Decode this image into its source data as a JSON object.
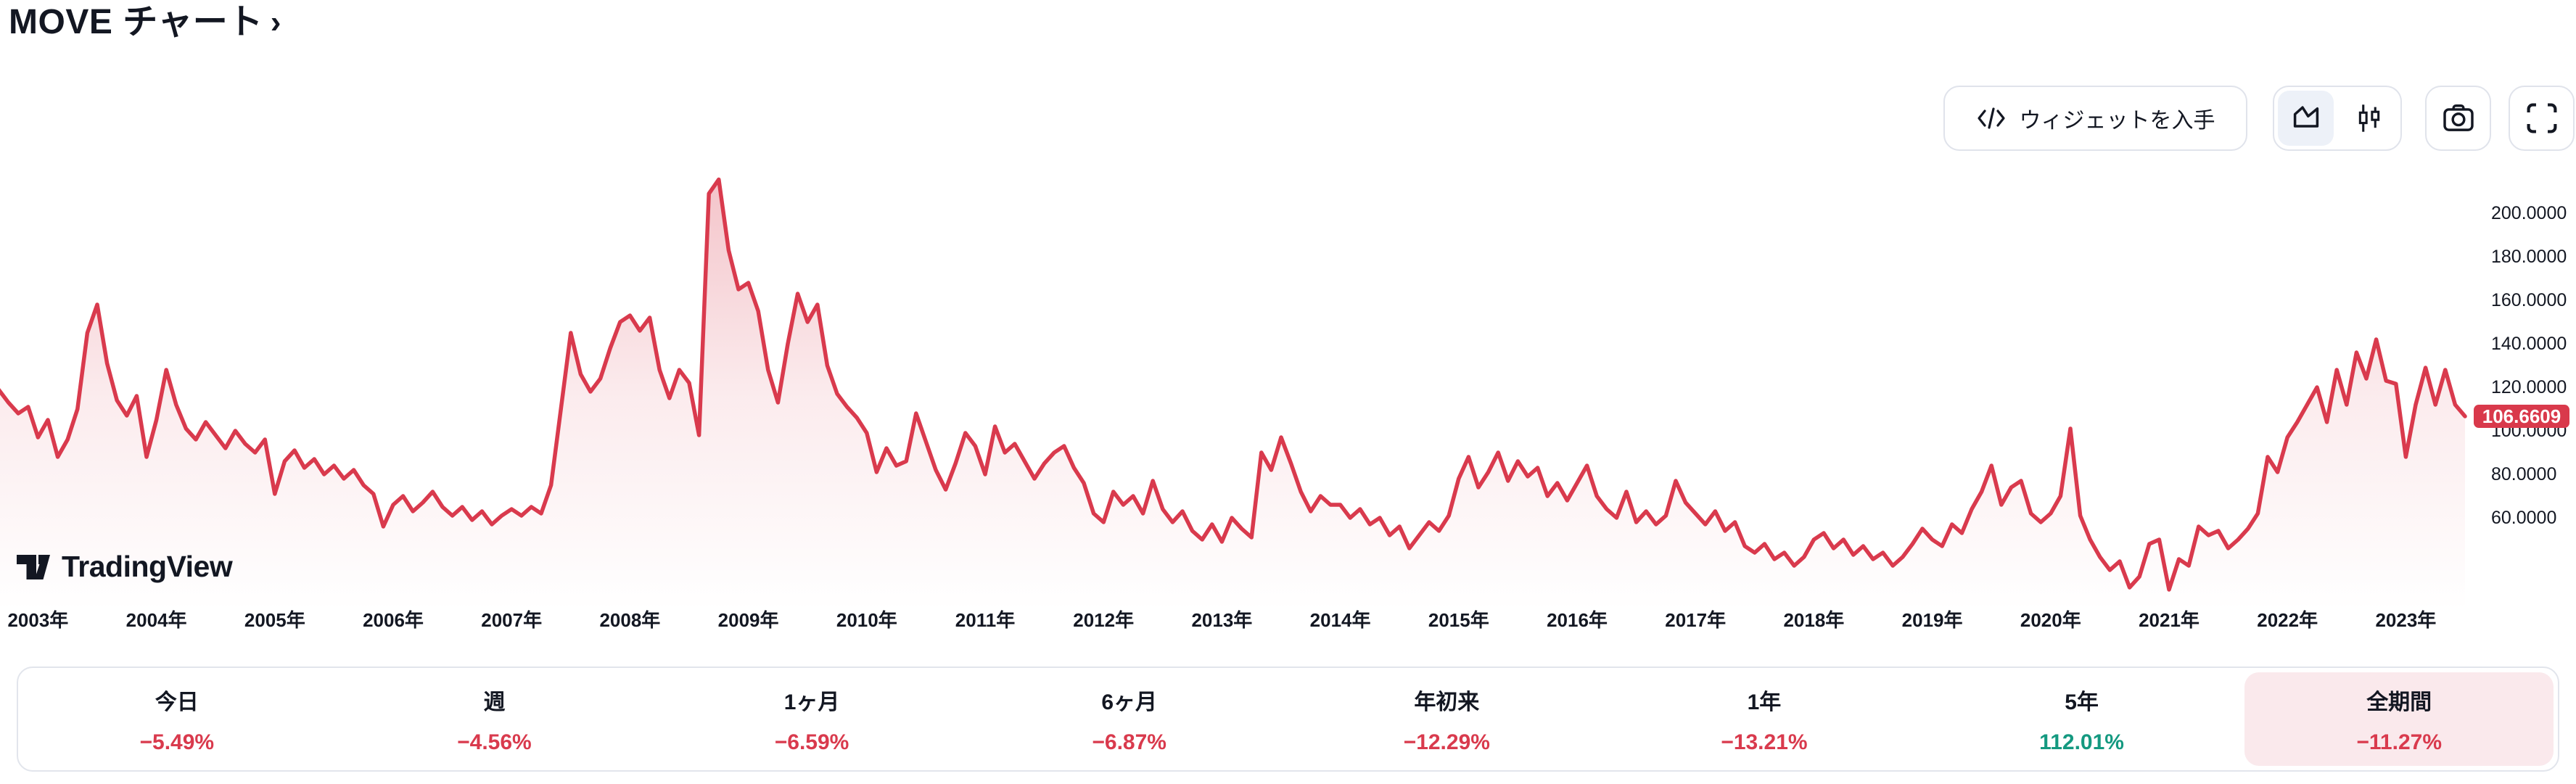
{
  "page": {
    "title": "MOVE チャート",
    "title_chevron": "›"
  },
  "toolbar": {
    "get_widget_label": "ウィジェットを入手"
  },
  "attribution": {
    "logo_text": "TradingView"
  },
  "chart_data": {
    "type": "area",
    "symbol": "MOVE",
    "x_tick_years": [
      "2003年",
      "2004年",
      "2005年",
      "2006年",
      "2007年",
      "2008年",
      "2009年",
      "2010年",
      "2011年",
      "2012年",
      "2013年",
      "2014年",
      "2015年",
      "2016年",
      "2017年",
      "2018年",
      "2019年",
      "2020年",
      "2021年",
      "2022年",
      "2023年"
    ],
    "y_ticks": [
      "200.0000",
      "180.0000",
      "160.0000",
      "140.0000",
      "120.0000",
      "100.0000",
      "80.0000",
      "60.0000"
    ],
    "y_tick_values": [
      200,
      180,
      160,
      140,
      120,
      100,
      80,
      60
    ],
    "current_price": "106.6609",
    "current_value": 106.6609,
    "start": "2002-09",
    "interval": "monthly",
    "values": [
      119,
      113,
      108,
      111,
      97,
      105,
      88,
      96,
      110,
      145,
      158,
      131,
      114,
      107,
      116,
      88,
      105,
      128,
      112,
      101,
      96,
      104,
      98,
      92,
      100,
      94,
      90,
      96,
      71,
      86,
      91,
      83,
      87,
      80,
      84,
      78,
      82,
      75,
      71,
      56,
      66,
      70,
      63,
      67,
      72,
      65,
      61,
      65,
      59,
      63,
      57,
      61,
      64,
      61,
      65,
      62,
      75,
      110,
      145,
      126,
      118,
      124,
      138,
      150,
      153,
      146,
      152,
      128,
      115,
      128,
      122,
      98,
      209,
      215.5,
      183,
      165,
      168,
      155,
      128,
      113,
      140,
      163,
      150,
      158,
      130,
      117,
      111,
      106,
      99,
      81,
      92,
      84,
      86,
      108,
      95,
      82,
      73,
      85,
      99,
      93,
      80,
      102,
      90,
      94,
      86,
      78,
      85,
      90,
      93,
      83,
      76,
      62,
      58,
      72,
      66,
      70,
      62,
      77,
      64,
      58,
      63,
      54,
      50,
      57,
      49,
      60,
      55,
      51,
      90,
      82,
      97,
      85,
      72,
      63,
      70,
      66,
      66,
      60,
      64,
      57,
      60,
      52,
      56,
      46,
      52,
      58,
      54,
      61,
      78,
      88,
      74,
      81,
      90,
      77,
      86,
      79,
      83,
      70,
      76,
      68,
      76,
      84,
      70,
      64,
      60,
      72,
      58,
      63,
      57,
      61,
      77,
      67,
      62,
      57,
      63,
      54,
      58,
      47,
      44,
      48,
      41,
      44,
      38,
      42,
      50,
      53,
      46,
      50,
      43,
      47,
      41,
      44,
      38,
      42,
      48,
      55,
      50,
      47,
      57,
      53,
      64,
      72,
      84,
      66,
      74,
      77,
      62,
      58,
      62,
      70,
      101,
      61,
      50,
      42,
      36,
      40,
      28,
      33,
      48,
      50,
      27,
      41,
      38,
      56,
      52,
      54,
      46,
      50,
      55,
      62,
      88,
      81,
      97,
      104,
      112,
      120,
      104,
      128,
      112,
      136,
      124,
      142,
      123,
      121.6,
      88,
      112,
      129,
      112,
      128,
      112,
      106.66
    ]
  },
  "periods": [
    {
      "label": "今日",
      "value": "−5.49%",
      "direction": "down",
      "highlighted": false
    },
    {
      "label": "週",
      "value": "−4.56%",
      "direction": "down",
      "highlighted": false
    },
    {
      "label": "1ヶ月",
      "value": "−6.59%",
      "direction": "down",
      "highlighted": false
    },
    {
      "label": "6ヶ月",
      "value": "−6.87%",
      "direction": "down",
      "highlighted": false
    },
    {
      "label": "年初来",
      "value": "−12.29%",
      "direction": "down",
      "highlighted": false
    },
    {
      "label": "1年",
      "value": "−13.21%",
      "direction": "down",
      "highlighted": false
    },
    {
      "label": "5年",
      "value": "112.01%",
      "direction": "up",
      "highlighted": false
    },
    {
      "label": "全期間",
      "value": "−11.27%",
      "direction": "down",
      "highlighted": true
    }
  ],
  "colors": {
    "down": "#d93a4d",
    "up": "#149980",
    "line": "#d93a4d",
    "badge_bg": "#d9394b",
    "highlight_bg": "#fae9ec",
    "text": "#131722",
    "border": "#e0e3eb"
  }
}
